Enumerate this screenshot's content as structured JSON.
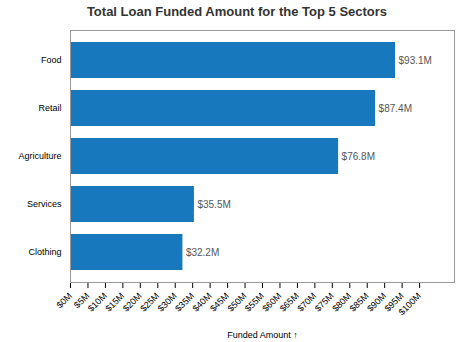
{
  "chart_data": {
    "type": "bar",
    "orientation": "horizontal",
    "title": "Total Loan Funded Amount for the Top 5 Sectors",
    "categories": [
      "Food",
      "Retail",
      "Agriculture",
      "Services",
      "Clothing"
    ],
    "values": [
      93100000,
      87400000,
      76800000,
      35500000,
      32200000
    ],
    "value_labels": [
      "$93.1M",
      "$87.4M",
      "$76.8M",
      "$35.5M",
      "$32.2M"
    ],
    "data_labels": true,
    "color": "#1878be",
    "xlabel": "Funded Amount ↑",
    "xlim": [
      0,
      110000000
    ],
    "xticks": [
      {
        "value": 0,
        "label": "$0M"
      },
      {
        "value": 5000000,
        "label": "$5M"
      },
      {
        "value": 10000000,
        "label": "$10M"
      },
      {
        "value": 15000000,
        "label": "$15M"
      },
      {
        "value": 20000000,
        "label": "$20M"
      },
      {
        "value": 25000000,
        "label": "$25M"
      },
      {
        "value": 30000000,
        "label": "$30M"
      },
      {
        "value": 35000000,
        "label": "$35M"
      },
      {
        "value": 40000000,
        "label": "$40M"
      },
      {
        "value": 45000000,
        "label": "$45M"
      },
      {
        "value": 50000000,
        "label": "$50M"
      },
      {
        "value": 55000000,
        "label": "$55M"
      },
      {
        "value": 60000000,
        "label": "$60M"
      },
      {
        "value": 65000000,
        "label": "$65M"
      },
      {
        "value": 70000000,
        "label": "$70M"
      },
      {
        "value": 75000000,
        "label": "$75M"
      },
      {
        "value": 80000000,
        "label": "$80M"
      },
      {
        "value": 85000000,
        "label": "$85M"
      },
      {
        "value": 90000000,
        "label": "$90M"
      },
      {
        "value": 95000000,
        "label": "$95M"
      },
      {
        "value": 100000000,
        "label": "$100M"
      }
    ],
    "grid": false
  }
}
